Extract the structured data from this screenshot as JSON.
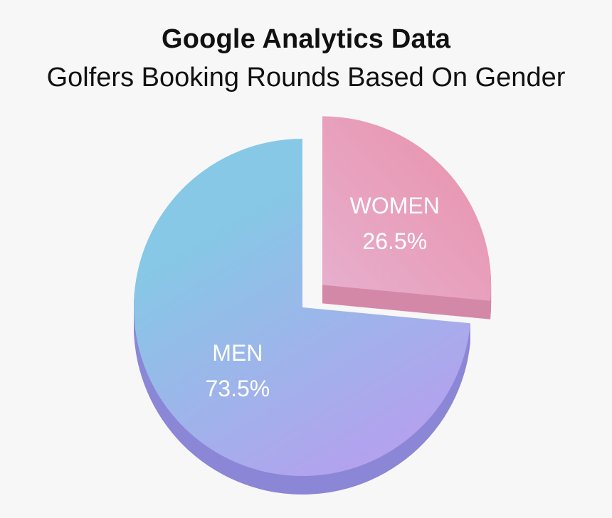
{
  "chart_data": {
    "type": "pie",
    "title": "Google Analytics Data",
    "subtitle": "Golfers Booking Rounds Based On Gender",
    "categories": [
      "MEN",
      "WOMEN"
    ],
    "values": [
      73.5,
      26.5
    ],
    "value_labels": [
      "73.5%",
      "26.5%"
    ],
    "exploded": [
      false,
      true
    ],
    "colors": {
      "men_top": "#86c8e6",
      "men_bottom": "#b3a2ee",
      "men_side": "#8b86d6",
      "women_top": "#e996b0",
      "women_bottom": "#e6b0cf",
      "women_side": "#d488a8"
    }
  }
}
